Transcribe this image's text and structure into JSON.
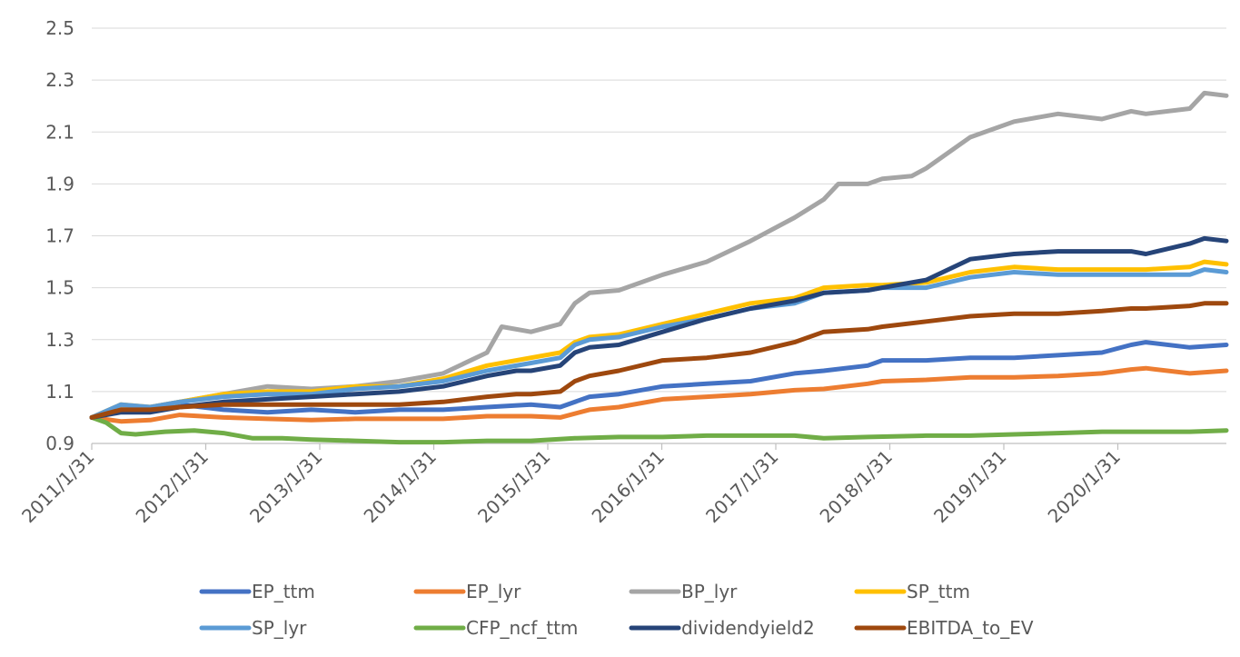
{
  "chart_data": {
    "type": "line",
    "title": "",
    "xlabel": "",
    "ylabel": "",
    "ylim": [
      0.9,
      2.5
    ],
    "yticks": [
      0.9,
      1.1,
      1.3,
      1.5,
      1.7,
      1.9,
      2.1,
      2.3,
      2.5
    ],
    "ytick_labels": [
      "0.9",
      "1.1",
      "1.3",
      "1.5",
      "1.7",
      "1.9",
      "2.1",
      "2.3",
      "2.5"
    ],
    "x_start": "2011/1/31",
    "x_end": "2020/12/31",
    "xtick_labels": [
      "2011/1/31",
      "2012/1/31",
      "2013/1/31",
      "2014/1/31",
      "2015/1/31",
      "2016/1/31",
      "2017/1/31",
      "2018/1/31",
      "2019/1/31",
      "2020/1/31"
    ],
    "grid": "horizontal",
    "legend_position": "bottom",
    "series": [
      {
        "name": "EP_ttm",
        "color": "#4472C4",
        "points": [
          [
            0,
            1.0
          ],
          [
            4,
            1.04
          ],
          [
            8,
            1.03
          ],
          [
            12,
            1.05
          ],
          [
            18,
            1.03
          ],
          [
            24,
            1.02
          ],
          [
            30,
            1.03
          ],
          [
            36,
            1.02
          ],
          [
            42,
            1.03
          ],
          [
            48,
            1.03
          ],
          [
            54,
            1.04
          ],
          [
            60,
            1.05
          ],
          [
            64,
            1.04
          ],
          [
            68,
            1.08
          ],
          [
            72,
            1.09
          ],
          [
            78,
            1.12
          ],
          [
            84,
            1.13
          ],
          [
            90,
            1.14
          ],
          [
            96,
            1.17
          ],
          [
            100,
            1.18
          ],
          [
            106,
            1.2
          ],
          [
            108,
            1.22
          ],
          [
            114,
            1.22
          ],
          [
            120,
            1.23
          ],
          [
            126,
            1.23
          ],
          [
            132,
            1.24
          ],
          [
            138,
            1.25
          ],
          [
            142,
            1.28
          ],
          [
            144,
            1.29
          ],
          [
            150,
            1.27
          ],
          [
            155,
            1.28
          ]
        ]
      },
      {
        "name": "EP_lyr",
        "color": "#ED7D31",
        "points": [
          [
            0,
            1.0
          ],
          [
            4,
            0.985
          ],
          [
            8,
            0.99
          ],
          [
            12,
            1.01
          ],
          [
            18,
            1.0
          ],
          [
            24,
            0.995
          ],
          [
            30,
            0.99
          ],
          [
            36,
            0.995
          ],
          [
            42,
            0.995
          ],
          [
            48,
            0.995
          ],
          [
            54,
            1.005
          ],
          [
            60,
            1.005
          ],
          [
            64,
            1.0
          ],
          [
            68,
            1.03
          ],
          [
            72,
            1.04
          ],
          [
            78,
            1.07
          ],
          [
            84,
            1.08
          ],
          [
            90,
            1.09
          ],
          [
            96,
            1.105
          ],
          [
            100,
            1.11
          ],
          [
            106,
            1.13
          ],
          [
            108,
            1.14
          ],
          [
            114,
            1.145
          ],
          [
            120,
            1.155
          ],
          [
            126,
            1.155
          ],
          [
            132,
            1.16
          ],
          [
            138,
            1.17
          ],
          [
            142,
            1.185
          ],
          [
            144,
            1.19
          ],
          [
            150,
            1.17
          ],
          [
            155,
            1.18
          ]
        ]
      },
      {
        "name": "BP_lyr",
        "color": "#A5A5A5",
        "points": [
          [
            0,
            1.0
          ],
          [
            4,
            1.04
          ],
          [
            8,
            1.04
          ],
          [
            12,
            1.06
          ],
          [
            18,
            1.09
          ],
          [
            24,
            1.12
          ],
          [
            30,
            1.11
          ],
          [
            36,
            1.12
          ],
          [
            42,
            1.14
          ],
          [
            48,
            1.17
          ],
          [
            54,
            1.25
          ],
          [
            56,
            1.35
          ],
          [
            60,
            1.33
          ],
          [
            64,
            1.36
          ],
          [
            66,
            1.44
          ],
          [
            68,
            1.48
          ],
          [
            72,
            1.49
          ],
          [
            78,
            1.55
          ],
          [
            84,
            1.6
          ],
          [
            90,
            1.68
          ],
          [
            96,
            1.77
          ],
          [
            100,
            1.84
          ],
          [
            102,
            1.9
          ],
          [
            106,
            1.9
          ],
          [
            108,
            1.92
          ],
          [
            112,
            1.93
          ],
          [
            114,
            1.96
          ],
          [
            120,
            2.08
          ],
          [
            126,
            2.14
          ],
          [
            132,
            2.17
          ],
          [
            138,
            2.15
          ],
          [
            142,
            2.18
          ],
          [
            144,
            2.17
          ],
          [
            150,
            2.19
          ],
          [
            152,
            2.25
          ],
          [
            155,
            2.24
          ]
        ]
      },
      {
        "name": "SP_ttm",
        "color": "#FFC000",
        "points": [
          [
            0,
            1.0
          ],
          [
            4,
            1.05
          ],
          [
            8,
            1.04
          ],
          [
            12,
            1.06
          ],
          [
            18,
            1.09
          ],
          [
            24,
            1.1
          ],
          [
            30,
            1.1
          ],
          [
            36,
            1.12
          ],
          [
            42,
            1.12
          ],
          [
            48,
            1.15
          ],
          [
            54,
            1.2
          ],
          [
            60,
            1.23
          ],
          [
            64,
            1.25
          ],
          [
            66,
            1.29
          ],
          [
            68,
            1.31
          ],
          [
            72,
            1.32
          ],
          [
            78,
            1.36
          ],
          [
            84,
            1.4
          ],
          [
            90,
            1.44
          ],
          [
            96,
            1.46
          ],
          [
            100,
            1.5
          ],
          [
            106,
            1.51
          ],
          [
            108,
            1.51
          ],
          [
            114,
            1.52
          ],
          [
            120,
            1.56
          ],
          [
            126,
            1.58
          ],
          [
            132,
            1.57
          ],
          [
            138,
            1.57
          ],
          [
            142,
            1.57
          ],
          [
            144,
            1.57
          ],
          [
            150,
            1.58
          ],
          [
            152,
            1.6
          ],
          [
            155,
            1.59
          ]
        ]
      },
      {
        "name": "SP_lyr",
        "color": "#5B9BD5",
        "points": [
          [
            0,
            1.0
          ],
          [
            4,
            1.05
          ],
          [
            8,
            1.04
          ],
          [
            12,
            1.06
          ],
          [
            18,
            1.08
          ],
          [
            24,
            1.09
          ],
          [
            30,
            1.09
          ],
          [
            36,
            1.11
          ],
          [
            42,
            1.12
          ],
          [
            48,
            1.14
          ],
          [
            54,
            1.18
          ],
          [
            60,
            1.21
          ],
          [
            64,
            1.23
          ],
          [
            66,
            1.28
          ],
          [
            68,
            1.3
          ],
          [
            72,
            1.31
          ],
          [
            78,
            1.35
          ],
          [
            84,
            1.38
          ],
          [
            90,
            1.42
          ],
          [
            96,
            1.44
          ],
          [
            100,
            1.48
          ],
          [
            106,
            1.49
          ],
          [
            108,
            1.5
          ],
          [
            114,
            1.5
          ],
          [
            120,
            1.54
          ],
          [
            126,
            1.56
          ],
          [
            132,
            1.55
          ],
          [
            138,
            1.55
          ],
          [
            142,
            1.55
          ],
          [
            144,
            1.55
          ],
          [
            150,
            1.55
          ],
          [
            152,
            1.57
          ],
          [
            155,
            1.56
          ]
        ]
      },
      {
        "name": "CFP_ncf_ttm",
        "color": "#70AD47",
        "points": [
          [
            0,
            1.0
          ],
          [
            2,
            0.98
          ],
          [
            4,
            0.94
          ],
          [
            6,
            0.935
          ],
          [
            10,
            0.945
          ],
          [
            14,
            0.95
          ],
          [
            18,
            0.94
          ],
          [
            22,
            0.92
          ],
          [
            26,
            0.92
          ],
          [
            30,
            0.915
          ],
          [
            36,
            0.91
          ],
          [
            42,
            0.905
          ],
          [
            48,
            0.905
          ],
          [
            54,
            0.91
          ],
          [
            60,
            0.91
          ],
          [
            66,
            0.92
          ],
          [
            72,
            0.925
          ],
          [
            78,
            0.925
          ],
          [
            84,
            0.93
          ],
          [
            90,
            0.93
          ],
          [
            96,
            0.93
          ],
          [
            100,
            0.92
          ],
          [
            106,
            0.925
          ],
          [
            114,
            0.93
          ],
          [
            120,
            0.93
          ],
          [
            126,
            0.935
          ],
          [
            132,
            0.94
          ],
          [
            138,
            0.945
          ],
          [
            144,
            0.945
          ],
          [
            150,
            0.945
          ],
          [
            155,
            0.95
          ]
        ]
      },
      {
        "name": "dividendyield2",
        "color": "#264478",
        "points": [
          [
            0,
            1.0
          ],
          [
            4,
            1.02
          ],
          [
            8,
            1.02
          ],
          [
            12,
            1.04
          ],
          [
            18,
            1.06
          ],
          [
            24,
            1.07
          ],
          [
            30,
            1.08
          ],
          [
            36,
            1.09
          ],
          [
            42,
            1.1
          ],
          [
            48,
            1.12
          ],
          [
            54,
            1.16
          ],
          [
            58,
            1.18
          ],
          [
            60,
            1.18
          ],
          [
            64,
            1.2
          ],
          [
            66,
            1.25
          ],
          [
            68,
            1.27
          ],
          [
            72,
            1.28
          ],
          [
            78,
            1.33
          ],
          [
            84,
            1.38
          ],
          [
            90,
            1.42
          ],
          [
            96,
            1.45
          ],
          [
            100,
            1.48
          ],
          [
            106,
            1.49
          ],
          [
            108,
            1.5
          ],
          [
            114,
            1.53
          ],
          [
            120,
            1.61
          ],
          [
            126,
            1.63
          ],
          [
            132,
            1.64
          ],
          [
            138,
            1.64
          ],
          [
            142,
            1.64
          ],
          [
            144,
            1.63
          ],
          [
            150,
            1.67
          ],
          [
            152,
            1.69
          ],
          [
            155,
            1.68
          ]
        ]
      },
      {
        "name": "EBITDA_to_EV",
        "color": "#9E480E",
        "points": [
          [
            0,
            1.0
          ],
          [
            4,
            1.03
          ],
          [
            8,
            1.03
          ],
          [
            12,
            1.04
          ],
          [
            18,
            1.05
          ],
          [
            24,
            1.05
          ],
          [
            30,
            1.05
          ],
          [
            36,
            1.05
          ],
          [
            42,
            1.05
          ],
          [
            48,
            1.06
          ],
          [
            54,
            1.08
          ],
          [
            58,
            1.09
          ],
          [
            60,
            1.09
          ],
          [
            64,
            1.1
          ],
          [
            66,
            1.14
          ],
          [
            68,
            1.16
          ],
          [
            72,
            1.18
          ],
          [
            78,
            1.22
          ],
          [
            84,
            1.23
          ],
          [
            90,
            1.25
          ],
          [
            96,
            1.29
          ],
          [
            100,
            1.33
          ],
          [
            106,
            1.34
          ],
          [
            108,
            1.35
          ],
          [
            114,
            1.37
          ],
          [
            120,
            1.39
          ],
          [
            126,
            1.4
          ],
          [
            132,
            1.4
          ],
          [
            138,
            1.41
          ],
          [
            142,
            1.42
          ],
          [
            144,
            1.42
          ],
          [
            150,
            1.43
          ],
          [
            152,
            1.44
          ],
          [
            155,
            1.44
          ]
        ]
      }
    ]
  }
}
